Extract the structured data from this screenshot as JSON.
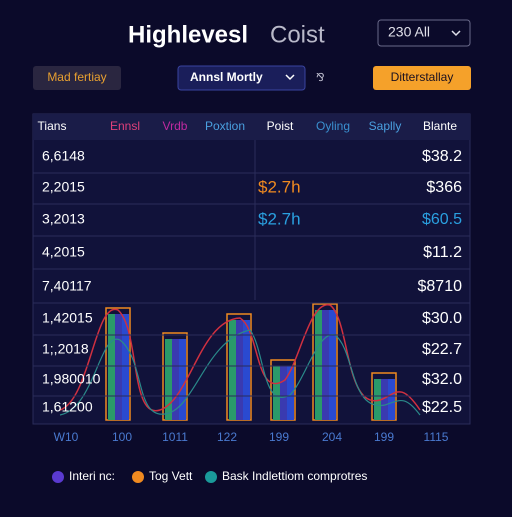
{
  "header": {
    "title_main": "Highlevesl",
    "title_rest": "Coist",
    "dropdown": "230 All"
  },
  "toolbar": {
    "left_button": "Mad fertiay",
    "period_dropdown": "Annsl Mortly",
    "icon_text": "⅋",
    "right_button": "Ditterstallay"
  },
  "table": {
    "columns": [
      "Tians",
      "Ennsl",
      "Vrdb",
      "Poxtion",
      "Poist",
      "Oyling",
      "Saplly",
      "Blante"
    ],
    "rows": [
      {
        "label": "6,6148",
        "amount": "$38.2"
      },
      {
        "label": "2,2015",
        "note": "$2.7h",
        "amount": "$366"
      },
      {
        "label": "3,2013",
        "note": "$2.7h",
        "amount": "$60.5"
      },
      {
        "label": "4,2015",
        "amount": "$11.2"
      },
      {
        "label": "7,40117",
        "amount": "$8710"
      },
      {
        "label": "1,42015",
        "amount": "$30.0"
      },
      {
        "label": "1;,2018",
        "amount": "$22.7"
      },
      {
        "label": "1,980010",
        "amount": "$32.0"
      },
      {
        "label": "1,61200",
        "amount": "$22.5"
      }
    ],
    "x_labels": [
      "W10",
      "100",
      "1011",
      "122",
      "199",
      "204",
      "199",
      "1115"
    ]
  },
  "legend": [
    "Interi nc:",
    "Tog Vett",
    "Bask Indlettiom comprotres"
  ]
}
